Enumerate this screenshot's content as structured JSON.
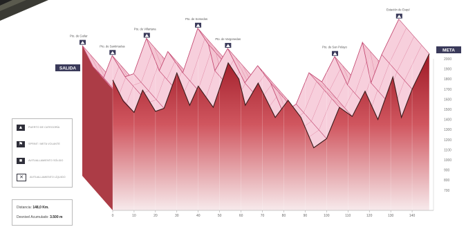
{
  "chart_data": {
    "type": "area",
    "title": "",
    "xlabel": "",
    "ylabel": "",
    "xlim": [
      0,
      150
    ],
    "ylim": [
      500,
      2000
    ],
    "x_ticks": [
      0,
      10,
      20,
      30,
      40,
      50,
      60,
      70,
      80,
      90,
      100,
      110,
      120,
      130,
      140
    ],
    "y_ticks": [
      700,
      800,
      900,
      1000,
      1100,
      1200,
      1300,
      1400,
      1500,
      1600,
      1700,
      1800,
      1900,
      2000
    ],
    "start_label": "SALIDA",
    "finish_label": "META",
    "profile": [
      {
        "x": 0,
        "y": 1790
      },
      {
        "x": 5,
        "y": 1580
      },
      {
        "x": 10,
        "y": 1470
      },
      {
        "x": 14,
        "y": 1690
      },
      {
        "x": 20,
        "y": 1480
      },
      {
        "x": 24,
        "y": 1510
      },
      {
        "x": 30,
        "y": 1860
      },
      {
        "x": 36,
        "y": 1540
      },
      {
        "x": 40,
        "y": 1730
      },
      {
        "x": 47,
        "y": 1520
      },
      {
        "x": 54,
        "y": 1960
      },
      {
        "x": 59,
        "y": 1800
      },
      {
        "x": 62,
        "y": 1540
      },
      {
        "x": 68,
        "y": 1760
      },
      {
        "x": 76,
        "y": 1420
      },
      {
        "x": 82,
        "y": 1590
      },
      {
        "x": 88,
        "y": 1420
      },
      {
        "x": 94,
        "y": 1120
      },
      {
        "x": 100,
        "y": 1210
      },
      {
        "x": 106,
        "y": 1520
      },
      {
        "x": 112,
        "y": 1430
      },
      {
        "x": 118,
        "y": 1680
      },
      {
        "x": 124,
        "y": 1400
      },
      {
        "x": 131,
        "y": 1820
      },
      {
        "x": 135,
        "y": 1420
      },
      {
        "x": 140,
        "y": 1700
      },
      {
        "x": 148,
        "y": 2050
      }
    ],
    "climbs": [
      {
        "x": 0,
        "label": "Pto. de Guilar"
      },
      {
        "x": 14,
        "label": "Pto. de Santiriuelas"
      },
      {
        "x": 30,
        "label": "Pto. de Villartana"
      },
      {
        "x": 54,
        "label": "Pto. de Somedos"
      },
      {
        "x": 68,
        "label": "Pto. de Vargonedas"
      },
      {
        "x": 118,
        "label": "Pto. de San Pelayo"
      },
      {
        "x": 148,
        "label": "Estación de Esquí"
      }
    ]
  },
  "legend": {
    "items": [
      {
        "icon": "puerto",
        "text": "PUERTO DE CATEGORÍA"
      },
      {
        "icon": "meta",
        "text": "SPRINT / META VOLANTE"
      },
      {
        "icon": "avituallamiento",
        "text": "AVITUALLAMIENTO SÓLIDO"
      },
      {
        "icon": "liquido",
        "text": "AVITUALLAMIENTO LÍQUIDO"
      }
    ]
  },
  "stats": {
    "distance_label": "Distancia:",
    "distance_value": "148,0 Km.",
    "climb_label": "Desnivel Acumulado:",
    "climb_value": "3.500 m"
  },
  "colors": {
    "area_top": "#9e1a26",
    "area_bottom": "#f7e6e8",
    "slab": "#f4c4d2",
    "slab_edge": "#c44c74",
    "outline": "#3a1c1c",
    "badge": "#3a3a5a"
  }
}
